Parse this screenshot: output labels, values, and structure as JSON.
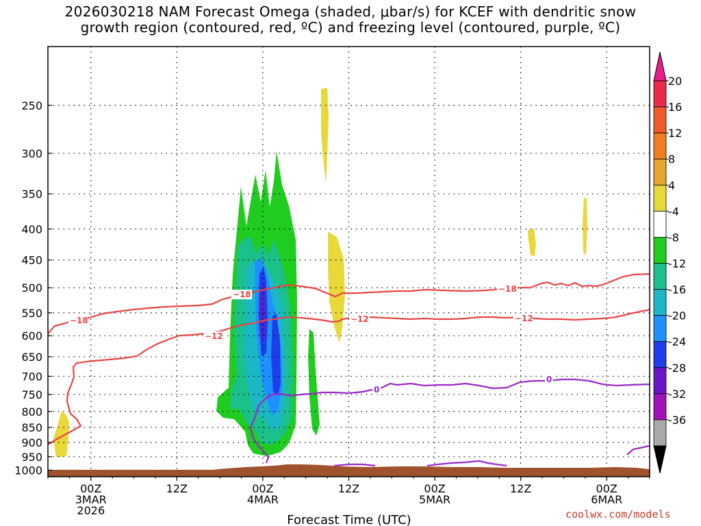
{
  "title_line1": "2026030218 NAM Forecast Omega (shaded, μbar/s) for KCEF with dendritic snow",
  "title_line2": "growth region (contoured, red, ºC) and freezing level (contoured, purple, ºC)",
  "credit": "coolwx.com/models",
  "chart_data": {
    "type": "time-height cross section",
    "xlabel": "Forecast Time (UTC)",
    "x_ticks": [
      {
        "hour": 6,
        "l1": "00Z",
        "l2": "3MAR",
        "l3": "2026"
      },
      {
        "hour": 18,
        "l1": "12Z",
        "l2": "",
        "l3": ""
      },
      {
        "hour": 30,
        "l1": "00Z",
        "l2": "4MAR",
        "l3": ""
      },
      {
        "hour": 42,
        "l1": "12Z",
        "l2": "",
        "l3": ""
      },
      {
        "hour": 54,
        "l1": "00Z",
        "l2": "5MAR",
        "l3": ""
      },
      {
        "hour": 66,
        "l1": "12Z",
        "l2": "",
        "l3": ""
      },
      {
        "hour": 78,
        "l1": "00Z",
        "l2": "6MAR",
        "l3": ""
      }
    ],
    "xlim": [
      0,
      84
    ],
    "y_ticks": [
      "250",
      "300",
      "350",
      "400",
      "450",
      "500",
      "550",
      "600",
      "650",
      "700",
      "750",
      "800",
      "850",
      "900",
      "950",
      "1000"
    ],
    "ylim": [
      1025,
      200
    ],
    "y_scale": "log",
    "grid": true,
    "colorbar": {
      "labels": [
        "20",
        "16",
        "12",
        "8",
        "4",
        "-4",
        "-8",
        "-12",
        "-16",
        "-20",
        "-24",
        "-28",
        "-32",
        "-36"
      ],
      "colors": [
        "#ea2a4b",
        "#f15a2a",
        "#ef7f21",
        "#e7a72f",
        "#e8d83a",
        "#ffffff",
        "#1fcc1f",
        "#1cc08a",
        "#1cb7c4",
        "#1e90ff",
        "#1d3ee8",
        "#6a16c8",
        "#a113b8",
        "#a9a9a9"
      ],
      "top_arrow_color": "#e81c8a",
      "bottom_arrow_color": "#000000"
    },
    "contours": [
      {
        "name": "-18",
        "color": "#ea4444",
        "labels_x": [
          11,
          29,
          65
        ]
      },
      {
        "name": "-12",
        "color": "#ea4444",
        "labels_x": [
          24,
          44,
          67
        ]
      },
      {
        "name": "0",
        "color": "#9b27c8",
        "labels_x": [
          46,
          70
        ]
      }
    ],
    "terrain_color": "#a0522d"
  }
}
